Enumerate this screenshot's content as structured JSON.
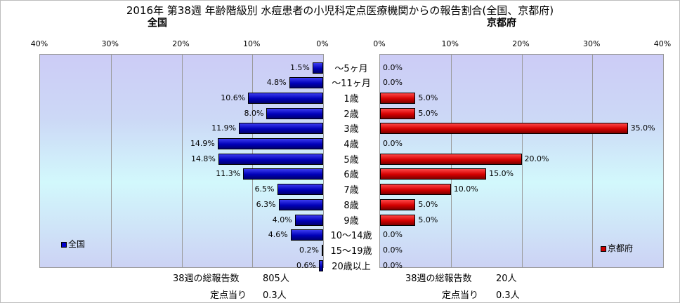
{
  "title": "2016年 第38週 年齢階級別 水痘患者の小児科定点医療機関からの報告割合(全国、京都府)",
  "left_header": "全国",
  "right_header": "京都府",
  "colors": {
    "national": "#0000cc",
    "kyoto": "#cc0000"
  },
  "chart_data": [
    {
      "type": "bar",
      "orientation": "horizontal",
      "direction": "right-to-left",
      "title": "全国",
      "categories": [
        "～5ヶ月",
        "～11ヶ月",
        "1歳",
        "2歳",
        "3歳",
        "4歳",
        "5歳",
        "6歳",
        "7歳",
        "8歳",
        "9歳",
        "10～14歳",
        "15～19歳",
        "20歳以上"
      ],
      "series": [
        {
          "name": "全国",
          "values": [
            1.5,
            4.8,
            10.6,
            8.0,
            11.9,
            14.9,
            14.8,
            11.3,
            6.5,
            6.3,
            4.0,
            4.6,
            0.2,
            0.6
          ],
          "labels": [
            "1.5%",
            "4.8%",
            "10.6%",
            "8.0%",
            "11.9%",
            "14.9%",
            "14.8%",
            "11.3%",
            "6.5%",
            "6.3%",
            "4.0%",
            "4.6%",
            "0.2%",
            "0.6%"
          ]
        }
      ],
      "xlim": [
        0,
        40
      ],
      "ticks": [
        "40%",
        "30%",
        "20%",
        "10%",
        "0%"
      ],
      "grid": true,
      "legend": "bottom-left"
    },
    {
      "type": "bar",
      "orientation": "horizontal",
      "direction": "left-to-right",
      "title": "京都府",
      "categories": [
        "～5ヶ月",
        "～11ヶ月",
        "1歳",
        "2歳",
        "3歳",
        "4歳",
        "5歳",
        "6歳",
        "7歳",
        "8歳",
        "9歳",
        "10～14歳",
        "15～19歳",
        "20歳以上"
      ],
      "series": [
        {
          "name": "京都府",
          "values": [
            0.0,
            0.0,
            5.0,
            5.0,
            35.0,
            0.0,
            20.0,
            15.0,
            10.0,
            5.0,
            5.0,
            0.0,
            0.0,
            0.0
          ],
          "labels": [
            "0.0%",
            "0.0%",
            "5.0%",
            "5.0%",
            "35.0%",
            "0.0%",
            "20.0%",
            "15.0%",
            "10.0%",
            "5.0%",
            "5.0%",
            "0.0%",
            "0.0%",
            "0.0%"
          ]
        }
      ],
      "xlim": [
        0,
        40
      ],
      "ticks": [
        "0%",
        "10%",
        "20%",
        "30%",
        "40%"
      ],
      "grid": true,
      "legend": "bottom-right"
    }
  ],
  "footer": {
    "left_total_label": "38週の総報告数",
    "left_total_value": "805人",
    "left_per_label": "定点当り",
    "left_per_value": "0.3人",
    "right_total_label": "38週の総報告数",
    "right_total_value": "20人",
    "right_per_label": "定点当り",
    "right_per_value": "0.3人"
  }
}
